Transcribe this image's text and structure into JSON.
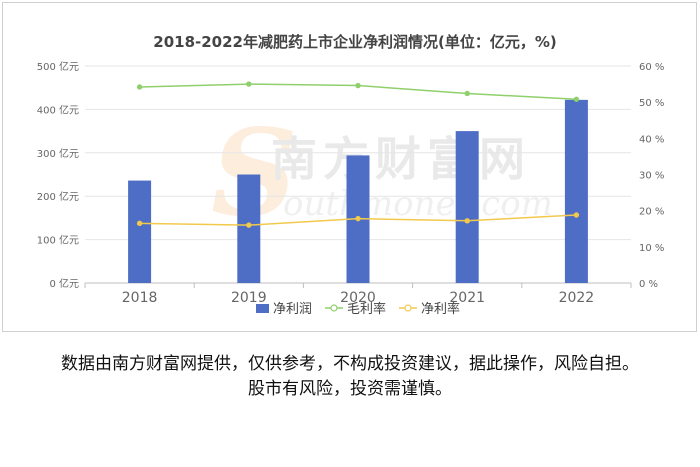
{
  "chart_data": {
    "type": "bar",
    "title": "2018-2022年减肥药上市企业净利润情况(单位：亿元，%)",
    "categories": [
      "2018",
      "2019",
      "2020",
      "2021",
      "2022"
    ],
    "series": [
      {
        "name": "净利润",
        "type": "bar",
        "axis": "left",
        "color": "#4e6ec5",
        "values": [
          236,
          250,
          294,
          350,
          422
        ]
      },
      {
        "name": "毛利率",
        "type": "line",
        "axis": "right",
        "color": "#8fcf6c",
        "values": [
          54.2,
          55.0,
          54.6,
          52.4,
          50.8
        ]
      },
      {
        "name": "净利率",
        "type": "line",
        "axis": "right",
        "color": "#f2c94c",
        "values": [
          16.5,
          16.0,
          17.8,
          17.2,
          18.8
        ]
      }
    ],
    "y_left": {
      "ylim": [
        0,
        500
      ],
      "ticks": [
        "0 亿元",
        "100 亿元",
        "200 亿元",
        "300 亿元",
        "400 亿元",
        "500 亿元"
      ]
    },
    "y_right": {
      "ylim": [
        0,
        60
      ],
      "ticks": [
        "0 %",
        "10 %",
        "20 %",
        "30 %",
        "40 %",
        "50 %",
        "60 %"
      ]
    },
    "legend": "bottom",
    "grid": true
  },
  "watermark": {
    "text": "南方财富网",
    "subtext": "outhmoney.com",
    "letter": "S"
  },
  "disclaimer": {
    "line1": "数据由南方财富网提供，仅供参考，不构成投资建议，据此操作，风险自担。",
    "line2": "股市有风险，投资需谨慎。"
  }
}
